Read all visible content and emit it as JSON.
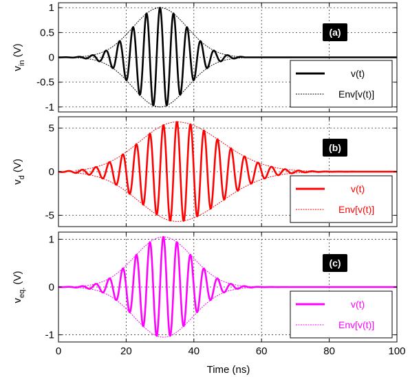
{
  "figure": {
    "xlabel": "Time (ns)"
  },
  "chart_data": [
    {
      "type": "line",
      "panel_label": "(a)",
      "ylabel": {
        "base": "v",
        "sub": "in",
        "unit": " (V)"
      },
      "xlim": [
        0,
        100
      ],
      "ylim": [
        -1.1,
        1.1
      ],
      "xticks": [
        0,
        20,
        40,
        60,
        80,
        100
      ],
      "yticks": [
        1,
        0.5,
        0,
        -0.5,
        -1
      ],
      "ytick_labels": [
        "1",
        "0.5",
        "0",
        "-0.5",
        "-1"
      ],
      "grid": true,
      "legend": "right",
      "legend_items": [
        "v(t)",
        "Env[v(t)]"
      ],
      "color": "#000000",
      "signal": {
        "amplitude": 1.0,
        "center_ns": 30,
        "sigma_ns": 8,
        "period_ns": 4.0,
        "t_end_ns": 55
      },
      "series": [
        {
          "name": "v(t)",
          "style": "solid"
        },
        {
          "name": "Env[v(t)]",
          "style": "dotted"
        }
      ]
    },
    {
      "type": "line",
      "panel_label": "(b)",
      "ylabel": {
        "base": "v",
        "sub": "d",
        "unit": " (V)"
      },
      "xlim": [
        0,
        100
      ],
      "ylim": [
        -6.3,
        6.3
      ],
      "xticks": [
        0,
        20,
        40,
        60,
        80,
        100
      ],
      "yticks": [
        5,
        0,
        -5
      ],
      "ytick_labels": [
        "5",
        "0",
        "-5"
      ],
      "grid": true,
      "legend": "right",
      "legend_items": [
        "v(t)",
        "Env[v(t)]"
      ],
      "color": "#ff0000",
      "signal": {
        "amplitude": 5.7,
        "center_ns": 35,
        "sigma_left_ns": 11,
        "sigma_right_ns": 13,
        "period_ns": 4.0,
        "t_end_ns": 92
      },
      "series": [
        {
          "name": "v(t)",
          "style": "solid"
        },
        {
          "name": "Env[v(t)]",
          "style": "dotted"
        }
      ]
    },
    {
      "type": "line",
      "panel_label": "(c)",
      "ylabel": {
        "base": "v",
        "sub": "eq.",
        "unit": " (V)"
      },
      "xlim": [
        0,
        100
      ],
      "ylim": [
        -1.15,
        1.15
      ],
      "xticks": [
        0,
        20,
        40,
        60,
        80,
        100
      ],
      "yticks": [
        1,
        0,
        -1
      ],
      "ytick_labels": [
        "1",
        "0",
        "-1"
      ],
      "grid": true,
      "legend": "right",
      "legend_items": [
        "v(t)",
        "Env[v(t)]"
      ],
      "color": "#ff00ff",
      "signal": {
        "amplitude": 1.05,
        "center_ns": 31,
        "sigma_ns": 8.5,
        "period_ns": 4.0,
        "t_end_ns": 72
      },
      "series": [
        {
          "name": "v(t)",
          "style": "solid"
        },
        {
          "name": "Env[v(t)]",
          "style": "dotted"
        }
      ]
    }
  ]
}
